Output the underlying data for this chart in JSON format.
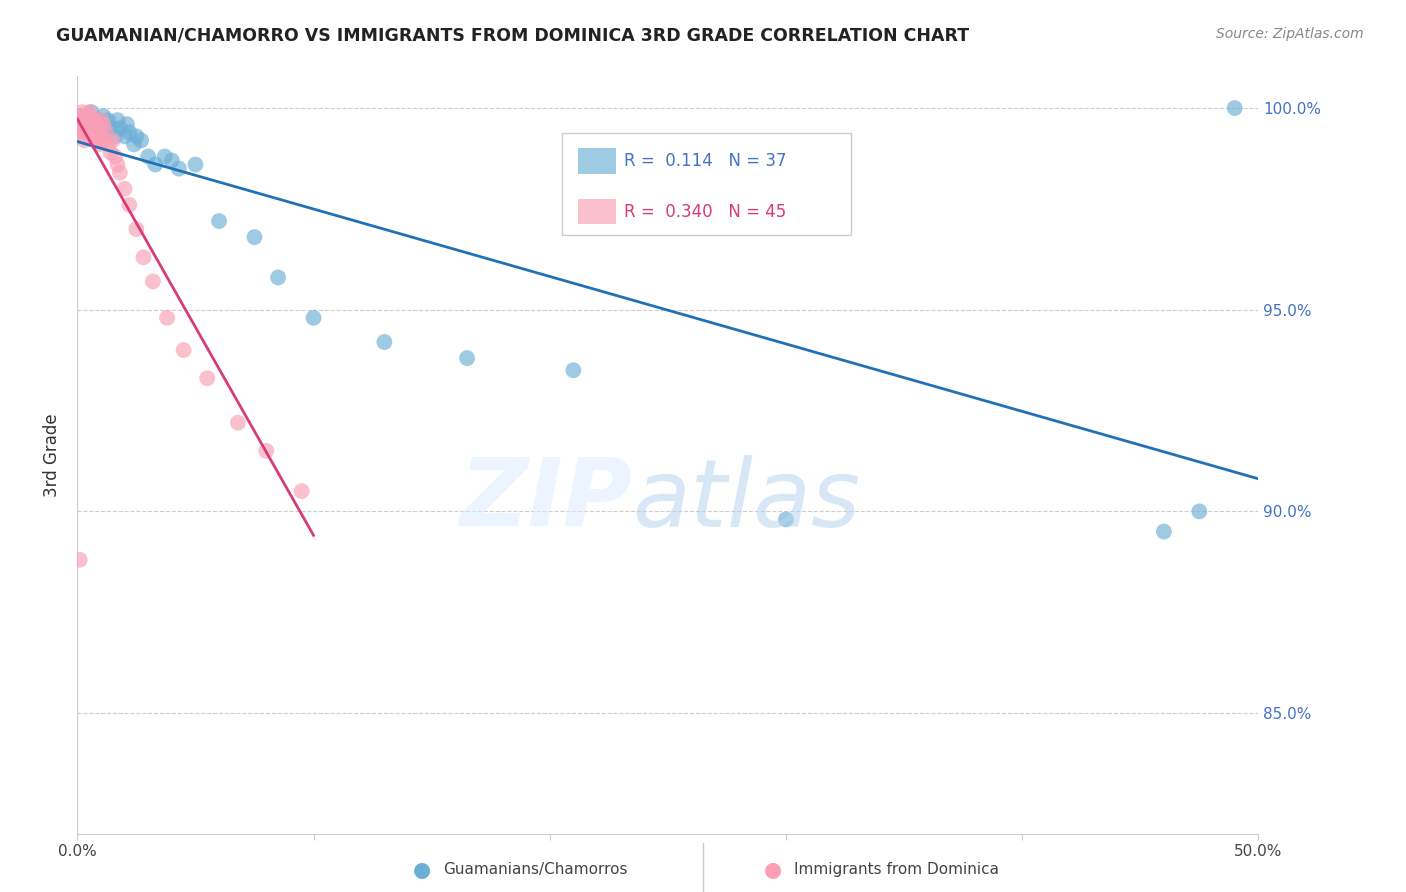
{
  "title": "GUAMANIAN/CHAMORRO VS IMMIGRANTS FROM DOMINICA 3RD GRADE CORRELATION CHART",
  "source": "Source: ZipAtlas.com",
  "ylabel": "3rd Grade",
  "xlim": [
    0.0,
    0.5
  ],
  "ylim": [
    0.82,
    1.008
  ],
  "yticks": [
    0.85,
    0.9,
    0.95,
    1.0
  ],
  "yticklabels": [
    "85.0%",
    "90.0%",
    "95.0%",
    "100.0%"
  ],
  "R_blue": 0.114,
  "N_blue": 37,
  "R_pink": 0.34,
  "N_pink": 45,
  "blue_color": "#6baed6",
  "pink_color": "#fa9fb5",
  "trendline_blue_color": "#2171b5",
  "trendline_pink_color": "#d63b7a",
  "blue_scatter_x": [
    0.001,
    0.003,
    0.005,
    0.006,
    0.008,
    0.009,
    0.01,
    0.011,
    0.012,
    0.013,
    0.015,
    0.016,
    0.017,
    0.018,
    0.02,
    0.021,
    0.022,
    0.024,
    0.025,
    0.027,
    0.03,
    0.033,
    0.037,
    0.04,
    0.043,
    0.05,
    0.06,
    0.075,
    0.085,
    0.1,
    0.13,
    0.165,
    0.21,
    0.3,
    0.46,
    0.475,
    0.49
  ],
  "blue_scatter_y": [
    0.998,
    0.996,
    0.997,
    0.999,
    0.995,
    0.997,
    0.996,
    0.998,
    0.994,
    0.997,
    0.995,
    0.993,
    0.997,
    0.995,
    0.993,
    0.996,
    0.994,
    0.991,
    0.993,
    0.992,
    0.988,
    0.986,
    0.988,
    0.987,
    0.985,
    0.986,
    0.972,
    0.968,
    0.958,
    0.948,
    0.942,
    0.938,
    0.935,
    0.898,
    0.895,
    0.9,
    1.0
  ],
  "pink_scatter_x": [
    0.001,
    0.001,
    0.001,
    0.002,
    0.002,
    0.002,
    0.003,
    0.003,
    0.003,
    0.004,
    0.004,
    0.005,
    0.005,
    0.005,
    0.006,
    0.006,
    0.007,
    0.007,
    0.008,
    0.008,
    0.009,
    0.009,
    0.01,
    0.01,
    0.011,
    0.011,
    0.012,
    0.013,
    0.014,
    0.015,
    0.016,
    0.017,
    0.018,
    0.02,
    0.022,
    0.025,
    0.028,
    0.032,
    0.038,
    0.045,
    0.055,
    0.068,
    0.08,
    0.095,
    0.001
  ],
  "pink_scatter_y": [
    0.998,
    0.996,
    0.993,
    0.999,
    0.997,
    0.994,
    0.998,
    0.995,
    0.992,
    0.997,
    0.994,
    0.999,
    0.996,
    0.993,
    0.998,
    0.995,
    0.997,
    0.993,
    0.996,
    0.992,
    0.995,
    0.991,
    0.997,
    0.993,
    0.996,
    0.992,
    0.994,
    0.991,
    0.989,
    0.992,
    0.988,
    0.986,
    0.984,
    0.98,
    0.976,
    0.97,
    0.963,
    0.957,
    0.948,
    0.94,
    0.933,
    0.922,
    0.915,
    0.905,
    0.888
  ]
}
